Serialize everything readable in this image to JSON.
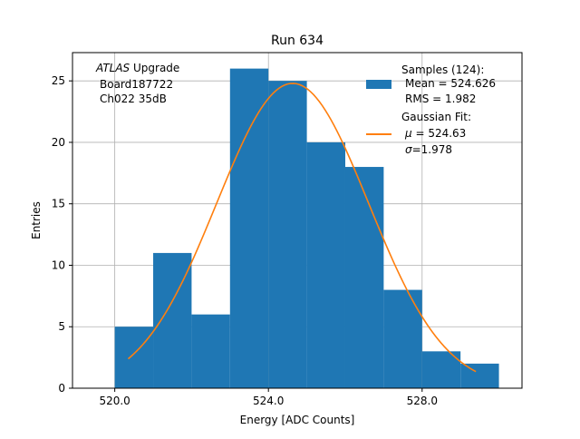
{
  "chart_data": {
    "type": "bar",
    "title": "Run 634",
    "xlabel": "Energy [ADC Counts]",
    "ylabel": "Entries",
    "xlim": [
      18.9,
      30.6
    ],
    "ylim": [
      0,
      27.3
    ],
    "grid": true,
    "legend_position": "top-right",
    "x_ticks": [
      {
        "value": 20.0,
        "label": "520.0"
      },
      {
        "value": 24.0,
        "label": "524.0"
      },
      {
        "value": 28.0,
        "label": "528.0"
      }
    ],
    "y_ticks": [
      {
        "value": 0,
        "label": "0"
      },
      {
        "value": 5,
        "label": "5"
      },
      {
        "value": 10,
        "label": "10"
      },
      {
        "value": 15,
        "label": "15"
      },
      {
        "value": 20,
        "label": "20"
      },
      {
        "value": 25,
        "label": "25"
      }
    ],
    "bins": [
      {
        "left": 20.0,
        "right": 21.0,
        "count": 5
      },
      {
        "left": 21.0,
        "right": 22.0,
        "count": 11
      },
      {
        "left": 22.0,
        "right": 23.0,
        "count": 6
      },
      {
        "left": 23.0,
        "right": 24.0,
        "count": 26
      },
      {
        "left": 24.0,
        "right": 25.0,
        "count": 25
      },
      {
        "left": 25.0,
        "right": 26.0,
        "count": 20
      },
      {
        "left": 26.0,
        "right": 27.0,
        "count": 18
      },
      {
        "left": 27.0,
        "right": 28.0,
        "count": 8
      },
      {
        "left": 28.0,
        "right": 29.0,
        "count": 3
      },
      {
        "left": 29.0,
        "right": 30.0,
        "count": 2
      }
    ],
    "fit": {
      "amplitude": 24.8,
      "mu": 24.63,
      "sigma": 1.978,
      "x_range": [
        20.35,
        29.4
      ]
    },
    "colors": {
      "histogram": "#1f77b4",
      "fit": "#ff7f0e",
      "grid": "#b0b0b0"
    },
    "annotation": {
      "experiment": "ATLAS",
      "experiment_suffix": " Upgrade",
      "board": "Board187722",
      "channel": "Ch022 35dB"
    },
    "legend": {
      "hist_line1": "Samples (124):",
      "hist_line2": "Mean = 524.626",
      "hist_line3": "RMS = 1.982",
      "fit_line1": "Gaussian Fit:",
      "fit_mu_symbol": "μ",
      "fit_mu_value": " = 524.63",
      "fit_sigma_symbol": "σ",
      "fit_sigma_value": "=1.978"
    }
  }
}
